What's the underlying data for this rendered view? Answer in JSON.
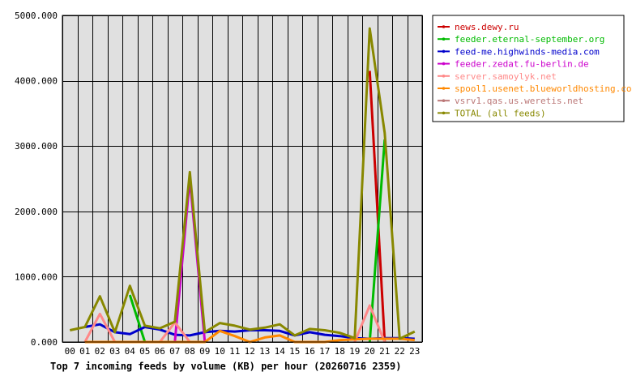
{
  "chart_data": {
    "type": "line",
    "title": "Top 7 incoming feeds by volume (KB) per hour (20260716 2359)",
    "xlabel": "",
    "ylabel": "",
    "x": [
      "00",
      "01",
      "02",
      "03",
      "04",
      "05",
      "06",
      "07",
      "08",
      "09",
      "10",
      "11",
      "12",
      "13",
      "14",
      "15",
      "16",
      "17",
      "18",
      "19",
      "20",
      "21",
      "22",
      "23"
    ],
    "y_ticks": [
      "0.000",
      "1000.000",
      "2000.000",
      "3000.000",
      "4000.000",
      "5000.000"
    ],
    "ylim": [
      0,
      5000
    ],
    "grid": true,
    "legend": "right",
    "plot_background": "#e0e0e0",
    "series": [
      {
        "name": "news.dewy.ru",
        "color": "#cc0000",
        "values": [
          null,
          null,
          null,
          null,
          null,
          null,
          null,
          null,
          null,
          null,
          null,
          null,
          null,
          null,
          null,
          null,
          null,
          null,
          null,
          null,
          4150,
          0,
          null,
          null
        ]
      },
      {
        "name": "feeder.eternal-september.org",
        "color": "#00bb00",
        "values": [
          null,
          null,
          null,
          null,
          720,
          0,
          null,
          null,
          null,
          null,
          null,
          null,
          null,
          null,
          null,
          null,
          null,
          null,
          null,
          null,
          0,
          3100,
          null,
          null
        ]
      },
      {
        "name": "feed-me.highwinds-media.com",
        "color": "#0000cc",
        "values": [
          null,
          230,
          270,
          150,
          120,
          230,
          190,
          110,
          100,
          150,
          170,
          160,
          180,
          180,
          170,
          100,
          150,
          110,
          90,
          60,
          50,
          60,
          60,
          50
        ]
      },
      {
        "name": "feeder.zedat.fu-berlin.de",
        "color": "#cc00cc",
        "values": [
          null,
          null,
          null,
          null,
          null,
          null,
          null,
          0,
          2500,
          0,
          null,
          null,
          null,
          null,
          null,
          null,
          null,
          null,
          null,
          null,
          null,
          null,
          null,
          null
        ]
      },
      {
        "name": "server.samoylyk.net",
        "color": "#ff8888",
        "values": [
          null,
          0,
          430,
          0,
          null,
          null,
          0,
          300,
          0,
          null,
          null,
          null,
          null,
          null,
          null,
          null,
          null,
          null,
          null,
          0,
          560,
          0,
          null,
          null
        ]
      },
      {
        "name": "spool1.usenet.blueworldhosting.com",
        "color": "#ff8800",
        "values": [
          null,
          0,
          0,
          0,
          0,
          0,
          0,
          0,
          0,
          0,
          170,
          90,
          0,
          70,
          100,
          0,
          0,
          0,
          30,
          40,
          50,
          50,
          50,
          30
        ]
      },
      {
        "name": "vsrv1.qas.us.weretis.net",
        "color": "#bb7777",
        "values": [
          null,
          null,
          null,
          null,
          null,
          null,
          null,
          null,
          null,
          null,
          null,
          null,
          null,
          null,
          null,
          null,
          null,
          null,
          null,
          null,
          null,
          null,
          null,
          null
        ]
      },
      {
        "name": "TOTAL (all feeds)",
        "color": "#888800",
        "values": [
          180,
          230,
          700,
          150,
          860,
          250,
          210,
          310,
          2600,
          150,
          290,
          250,
          190,
          220,
          270,
          100,
          200,
          180,
          140,
          60,
          4800,
          3200,
          50,
          160
        ]
      }
    ]
  }
}
